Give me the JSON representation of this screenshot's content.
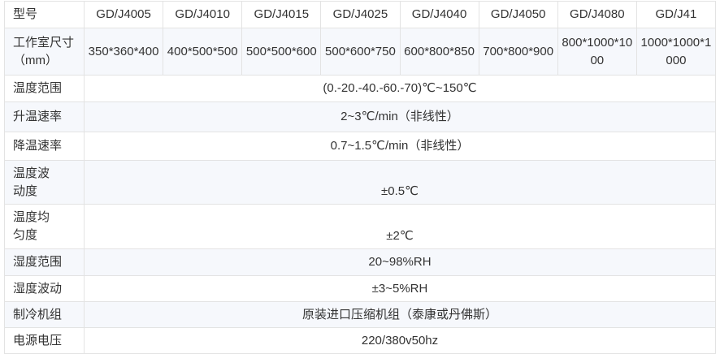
{
  "header": {
    "label": "型号",
    "models": [
      "GD/J4005",
      "GD/J4010",
      "GD/J4015",
      "GD/J4025",
      "GD/J4040",
      "GD/J4050",
      "GD/J4080",
      "GD/J41"
    ]
  },
  "size_row": {
    "label": "工作室尺寸（mm）",
    "values": [
      "350*360*400",
      "400*500*500",
      "500*500*600",
      "500*600*750",
      "600*800*850",
      "700*800*900",
      "800*1000*1000",
      "1000*1000*1000"
    ]
  },
  "rows": [
    {
      "label": "温度范围",
      "value": "(0.-20.-40.-60.-70)℃~150℃"
    },
    {
      "label": "升温速率",
      "value": "2~3℃/min（非线性）"
    },
    {
      "label": "降温速率",
      "value": "0.7~1.5℃/min（非线性）"
    },
    {
      "label": "温度波动度",
      "value": "±0.5℃"
    },
    {
      "label": "温度均匀度",
      "value": "±2℃"
    },
    {
      "label": "湿度范围",
      "value": "20~98%RH"
    },
    {
      "label": "湿度波动",
      "value": "±3~5%RH"
    },
    {
      "label": "制冷机组",
      "value": "原装进口压缩机组（泰康或丹佛斯）"
    },
    {
      "label": "电源电压",
      "value": "220/380v50hz"
    }
  ]
}
